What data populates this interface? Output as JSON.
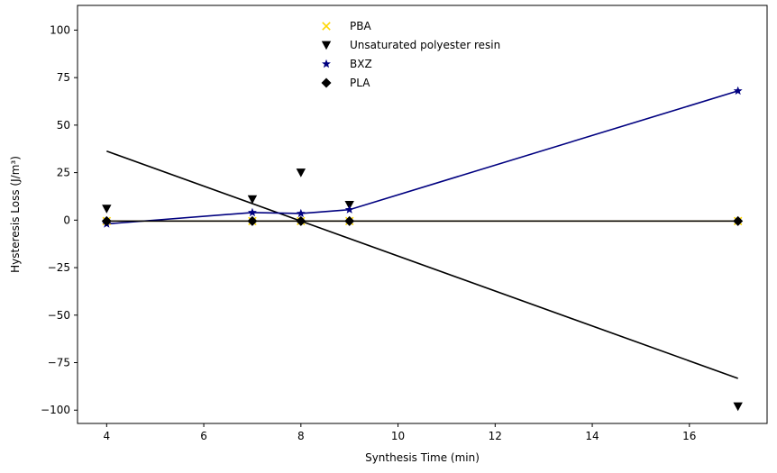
{
  "chart_data": {
    "type": "scatter",
    "title": "",
    "xlabel": "Synthesis Time (min)",
    "ylabel": "Hysteresis Loss (J/m³)",
    "xlim": [
      3.4,
      17.6
    ],
    "ylim": [
      -107,
      113
    ],
    "xticks": [
      4,
      6,
      8,
      10,
      12,
      14,
      16
    ],
    "yticks": [
      -100,
      -75,
      -50,
      -25,
      0,
      25,
      50,
      75,
      100
    ],
    "xtick_labels": [
      "4",
      "6",
      "8",
      "10",
      "12",
      "14",
      "16"
    ],
    "ytick_labels": [
      "−100",
      "−75",
      "−50",
      "−25",
      "0",
      "25",
      "50",
      "75",
      "100"
    ],
    "legend_position": "upper-center",
    "grid": false,
    "series": [
      {
        "name": "PBA",
        "marker": "x",
        "color": "#FFD700",
        "x": [
          4,
          7,
          8,
          9,
          17
        ],
        "y": [
          -0.5,
          -0.5,
          -0.5,
          -0.5,
          -0.5
        ],
        "fit_line": {
          "x": [
            4,
            17
          ],
          "y": [
            -0.5,
            -0.5
          ],
          "color": "#DAA520"
        }
      },
      {
        "name": "Unsaturated polyester resin",
        "marker": "triangle-down",
        "color": "#000000",
        "x": [
          4,
          7,
          8,
          9,
          17
        ],
        "y": [
          6,
          11,
          25,
          8,
          -98
        ],
        "fit_line": {
          "x": [
            4,
            17
          ],
          "y": [
            36.3,
            -83.3
          ],
          "color": "#000000"
        }
      },
      {
        "name": "BXZ",
        "marker": "star",
        "color": "#000080",
        "x": [
          4,
          7,
          8,
          9,
          17
        ],
        "y": [
          -2,
          4,
          3.5,
          5.5,
          68
        ],
        "fit_line": {
          "x": [
            4,
            7,
            8,
            9,
            17
          ],
          "y": [
            -2,
            4,
            3.5,
            5.5,
            68
          ],
          "color": "#000080"
        }
      },
      {
        "name": "PLA",
        "marker": "diamond",
        "color": "#000000",
        "x": [
          4,
          7,
          8,
          9,
          17
        ],
        "y": [
          -0.5,
          -0.5,
          -0.5,
          -0.5,
          -0.5
        ],
        "fit_line": {
          "x": [
            4,
            17
          ],
          "y": [
            -0.5,
            -0.5
          ],
          "color": "#000000"
        }
      }
    ]
  }
}
